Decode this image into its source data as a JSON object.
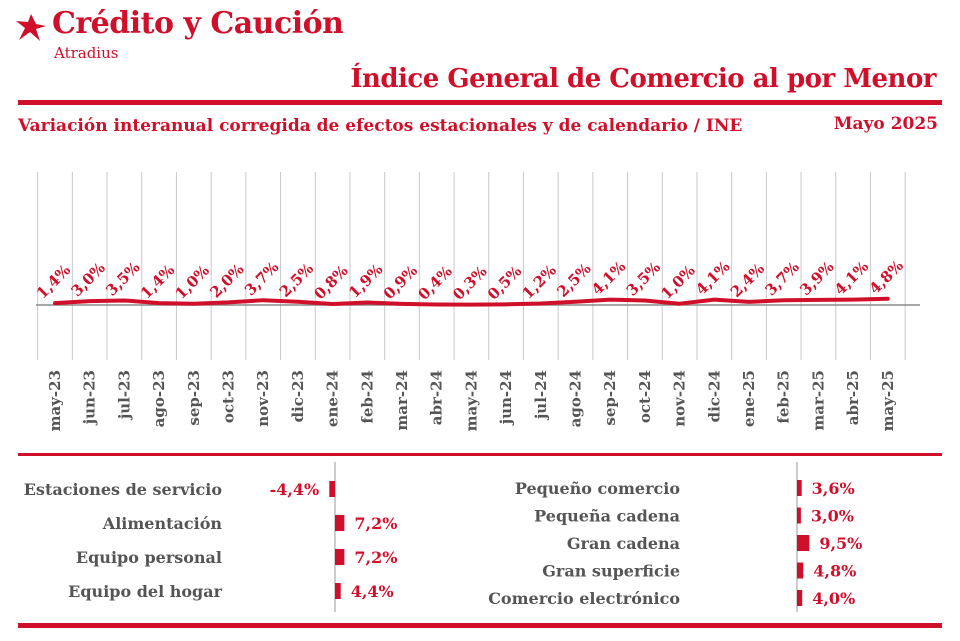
{
  "header": {
    "brand_name": "Crédito y Caución",
    "brand_sub": "Atradius",
    "title": "Índice General de Comercio al por Menor",
    "subtitle": "Variación interanual corregida de efectos estacionales y de calendario / INE",
    "period": "Mayo  2025",
    "brand_color": "#d0102b"
  },
  "chart_data": [
    {
      "type": "line",
      "categories": [
        "may-23",
        "jun-23",
        "jul-23",
        "ago-23",
        "sep-23",
        "oct-23",
        "nov-23",
        "dic-23",
        "ene-24",
        "feb-24",
        "mar-24",
        "abr-24",
        "may-24",
        "jun-24",
        "jul-24",
        "ago-24",
        "sep-24",
        "oct-24",
        "nov-24",
        "dic-24",
        "ene-25",
        "feb-25",
        "mar-25",
        "abr-25",
        "may-25"
      ],
      "values": [
        1.4,
        3.0,
        3.5,
        1.4,
        1.0,
        2.0,
        3.7,
        2.5,
        0.8,
        1.9,
        0.9,
        0.4,
        0.3,
        0.5,
        1.2,
        2.5,
        4.1,
        3.5,
        1.0,
        4.1,
        2.4,
        3.7,
        3.9,
        4.1,
        4.8
      ],
      "labels": [
        "1,4%",
        "3,0%",
        "3,5%",
        "1,4%",
        "1,0%",
        "2,0%",
        "3,7%",
        "2,5%",
        "0,8%",
        "1,9%",
        "0,9%",
        "0,4%",
        "0,3%",
        "0,5%",
        "1,2%",
        "2,5%",
        "4,1%",
        "3,5%",
        "1,0%",
        "4,1%",
        "2,4%",
        "3,7%",
        "3,9%",
        "4,1%",
        "4,8%"
      ],
      "grid": true,
      "color": "#d0102b"
    },
    {
      "type": "bar",
      "orientation": "horizontal",
      "categories": [
        "Estaciones de servicio",
        "Alimentación",
        "Equipo personal",
        "Equipo del hogar"
      ],
      "values": [
        -4.4,
        7.2,
        7.2,
        4.4
      ],
      "labels": [
        "-4,4%",
        "7,2%",
        "7,2%",
        "4,4%"
      ],
      "color": "#d0102b"
    },
    {
      "type": "bar",
      "orientation": "horizontal",
      "categories": [
        "Pequeño comercio",
        "Pequeña cadena",
        "Gran cadena",
        "Gran superficie",
        "Comercio electrónico"
      ],
      "values": [
        3.6,
        3.0,
        9.5,
        4.8,
        4.0
      ],
      "labels": [
        "3,6%",
        "3,0%",
        "9,5%",
        "4,8%",
        "4,0%"
      ],
      "color": "#d0102b"
    }
  ]
}
